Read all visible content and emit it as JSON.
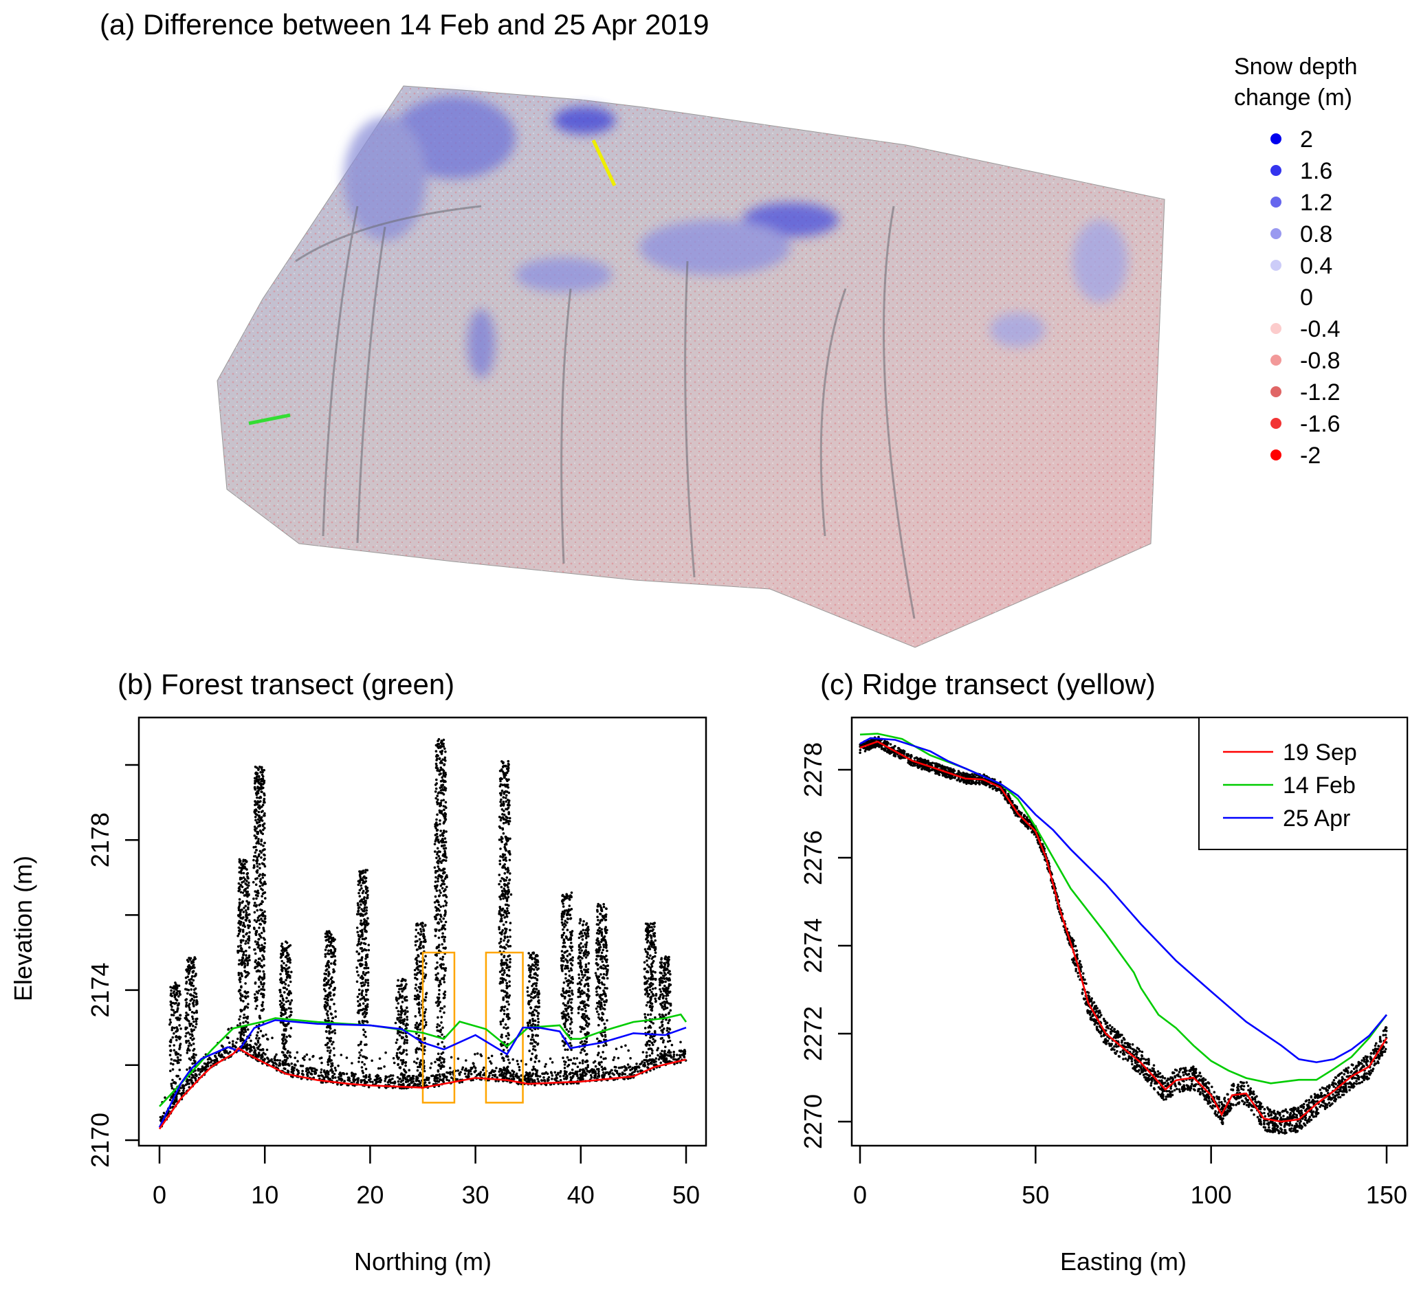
{
  "panel_a": {
    "title": "(a) Difference between 14 Feb and 25 Apr  2019",
    "legend_title_line1": "Snow depth",
    "legend_title_line2": "change (m)",
    "legend": [
      {
        "label": "2",
        "color": "#0000ee"
      },
      {
        "label": "1.6",
        "color": "#3434ee"
      },
      {
        "label": "1.2",
        "color": "#6666ee"
      },
      {
        "label": "0.8",
        "color": "#9999f0"
      },
      {
        "label": "0.4",
        "color": "#ccccf8"
      },
      {
        "label": "0",
        "color": "#ffffff"
      },
      {
        "label": "-0.4",
        "color": "#fccccc"
      },
      {
        "label": "-0.8",
        "color": "#f29999"
      },
      {
        "label": "-1.2",
        "color": "#e06666"
      },
      {
        "label": "-1.6",
        "color": "#f23434"
      },
      {
        "label": "-2",
        "color": "#ff0000"
      }
    ],
    "transect_colors": {
      "forest": "#33dd33",
      "ridge": "#eeee00"
    }
  },
  "chart_data": [
    {
      "type": "line",
      "title": "(b) Forest transect (green)",
      "xlabel": "Northing (m)",
      "ylabel": "Elevation (m)",
      "xlim": [
        0,
        50
      ],
      "ylim": [
        2170,
        2180
      ],
      "xticks": [
        0,
        10,
        20,
        30,
        40,
        50
      ],
      "yticks": [
        2170,
        2172,
        2174,
        2176,
        2178,
        2180
      ],
      "ytick_labels": [
        "2170",
        "",
        "2174",
        "",
        "2178",
        ""
      ],
      "series": [
        {
          "name": "19 Sep",
          "color": "#ff0000",
          "x": [
            0,
            2,
            4,
            5,
            7,
            7.5,
            9,
            12,
            15,
            18,
            20,
            25,
            30,
            33,
            35,
            40,
            45,
            47,
            50
          ],
          "y": [
            2170.3,
            2171.1,
            2171.7,
            2171.97,
            2172.3,
            2172.45,
            2172.2,
            2171.77,
            2171.6,
            2171.5,
            2171.46,
            2171.4,
            2171.66,
            2171.6,
            2171.5,
            2171.56,
            2171.7,
            2171.95,
            2172.15
          ]
        },
        {
          "name": "14 Feb",
          "color": "#00cc00",
          "x": [
            0,
            3,
            5,
            7,
            10,
            11,
            15,
            20,
            25,
            27,
            28.5,
            31,
            33,
            35,
            38,
            39,
            40,
            42,
            45,
            48,
            49.5,
            50
          ],
          "y": [
            2170.9,
            2171.8,
            2172.42,
            2172.98,
            2173.17,
            2173.25,
            2173.15,
            2173.06,
            2172.86,
            2172.7,
            2173.16,
            2172.96,
            2172.5,
            2173.0,
            2173.06,
            2172.7,
            2172.7,
            2172.9,
            2173.15,
            2173.25,
            2173.35,
            2173.15
          ]
        },
        {
          "name": "25 Apr",
          "color": "#0000ff",
          "x": [
            0,
            2,
            3,
            4,
            6.5,
            7.5,
            9,
            11,
            15,
            20,
            23,
            25,
            27,
            30,
            33,
            34.5,
            36,
            38,
            39,
            42,
            45,
            48,
            50
          ],
          "y": [
            2170.34,
            2171.5,
            2171.9,
            2172.17,
            2172.48,
            2172.38,
            2172.99,
            2173.2,
            2173.1,
            2173.06,
            2172.96,
            2172.6,
            2172.42,
            2172.8,
            2172.29,
            2173.0,
            2173.0,
            2172.9,
            2172.45,
            2172.6,
            2172.85,
            2172.8,
            2173.0
          ]
        }
      ],
      "point_cloud_trees": [
        {
          "x": 1.5,
          "top": 2174.2
        },
        {
          "x": 3,
          "top": 2174.9
        },
        {
          "x": 8,
          "top": 2177.5
        },
        {
          "x": 9.5,
          "top": 2180.0
        },
        {
          "x": 12,
          "top": 2175.3
        },
        {
          "x": 16.2,
          "top": 2175.6
        },
        {
          "x": 19.3,
          "top": 2177.2
        },
        {
          "x": 23,
          "top": 2174.3
        },
        {
          "x": 24.8,
          "top": 2175.8
        },
        {
          "x": 26.7,
          "top": 2180.7
        },
        {
          "x": 32.8,
          "top": 2180.1
        },
        {
          "x": 35.5,
          "top": 2175.0
        },
        {
          "x": 38.7,
          "top": 2176.6
        },
        {
          "x": 40.3,
          "top": 2175.9
        },
        {
          "x": 42,
          "top": 2176.3
        },
        {
          "x": 46.6,
          "top": 2175.8
        },
        {
          "x": 48,
          "top": 2174.9
        }
      ],
      "highlight_boxes": [
        {
          "x": [
            25,
            28
          ],
          "y": [
            2171,
            2175
          ],
          "color": "#ffa500"
        },
        {
          "x": [
            31,
            34.5
          ],
          "y": [
            2171,
            2175
          ],
          "color": "#ffa500"
        }
      ]
    },
    {
      "type": "line",
      "title": "(c) Ridge transect (yellow)",
      "xlabel": "Easting (m)",
      "ylabel": "",
      "xlim": [
        0,
        150
      ],
      "ylim": [
        2270,
        2278
      ],
      "xticks": [
        0,
        50,
        100,
        150
      ],
      "yticks": [
        2270,
        2272,
        2274,
        2276,
        2278
      ],
      "legend_position": "top-right",
      "series": [
        {
          "name": "19 Sep",
          "color": "#ff0000",
          "x": [
            0,
            5,
            15,
            20,
            30,
            35,
            40,
            45,
            50,
            53,
            57,
            62,
            65,
            70,
            80,
            87,
            90,
            95,
            100,
            103,
            106,
            110,
            115,
            120,
            125,
            130,
            135,
            140,
            145,
            150
          ],
          "y": [
            2278.5,
            2278.64,
            2278.2,
            2278.07,
            2277.8,
            2277.78,
            2277.6,
            2277.0,
            2276.6,
            2276.0,
            2274.8,
            2273.57,
            2272.7,
            2272.0,
            2271.34,
            2270.73,
            2270.94,
            2271.0,
            2270.6,
            2270.16,
            2270.6,
            2270.64,
            2270.07,
            2270.0,
            2270.05,
            2270.4,
            2270.7,
            2271.03,
            2271.25,
            2271.9
          ]
        },
        {
          "name": "14 Feb",
          "color": "#00cc00",
          "x": [
            0,
            5,
            12,
            20,
            30,
            40,
            45,
            50,
            55,
            60,
            70,
            78,
            80,
            85,
            90,
            95,
            100,
            105,
            110,
            117,
            125,
            130,
            135,
            140,
            145,
            150
          ],
          "y": [
            2278.8,
            2278.82,
            2278.7,
            2278.33,
            2278.03,
            2277.68,
            2277.33,
            2276.7,
            2276.0,
            2275.3,
            2274.27,
            2273.39,
            2273.04,
            2272.43,
            2272.13,
            2271.73,
            2271.38,
            2271.16,
            2270.99,
            2270.87,
            2270.95,
            2270.95,
            2271.2,
            2271.47,
            2271.9,
            2272.43
          ]
        },
        {
          "name": "25 Apr",
          "color": "#0000ff",
          "x": [
            0,
            3,
            10,
            15,
            20,
            25,
            30,
            40,
            45,
            50,
            55,
            60,
            70,
            80,
            90,
            100,
            110,
            120,
            125,
            130,
            135,
            140,
            145,
            150
          ],
          "y": [
            2278.59,
            2278.72,
            2278.68,
            2278.55,
            2278.42,
            2278.2,
            2278.03,
            2277.68,
            2277.41,
            2276.98,
            2276.63,
            2276.19,
            2275.4,
            2274.49,
            2273.66,
            2272.96,
            2272.27,
            2271.73,
            2271.42,
            2271.35,
            2271.42,
            2271.64,
            2271.95,
            2272.43
          ]
        }
      ]
    }
  ]
}
